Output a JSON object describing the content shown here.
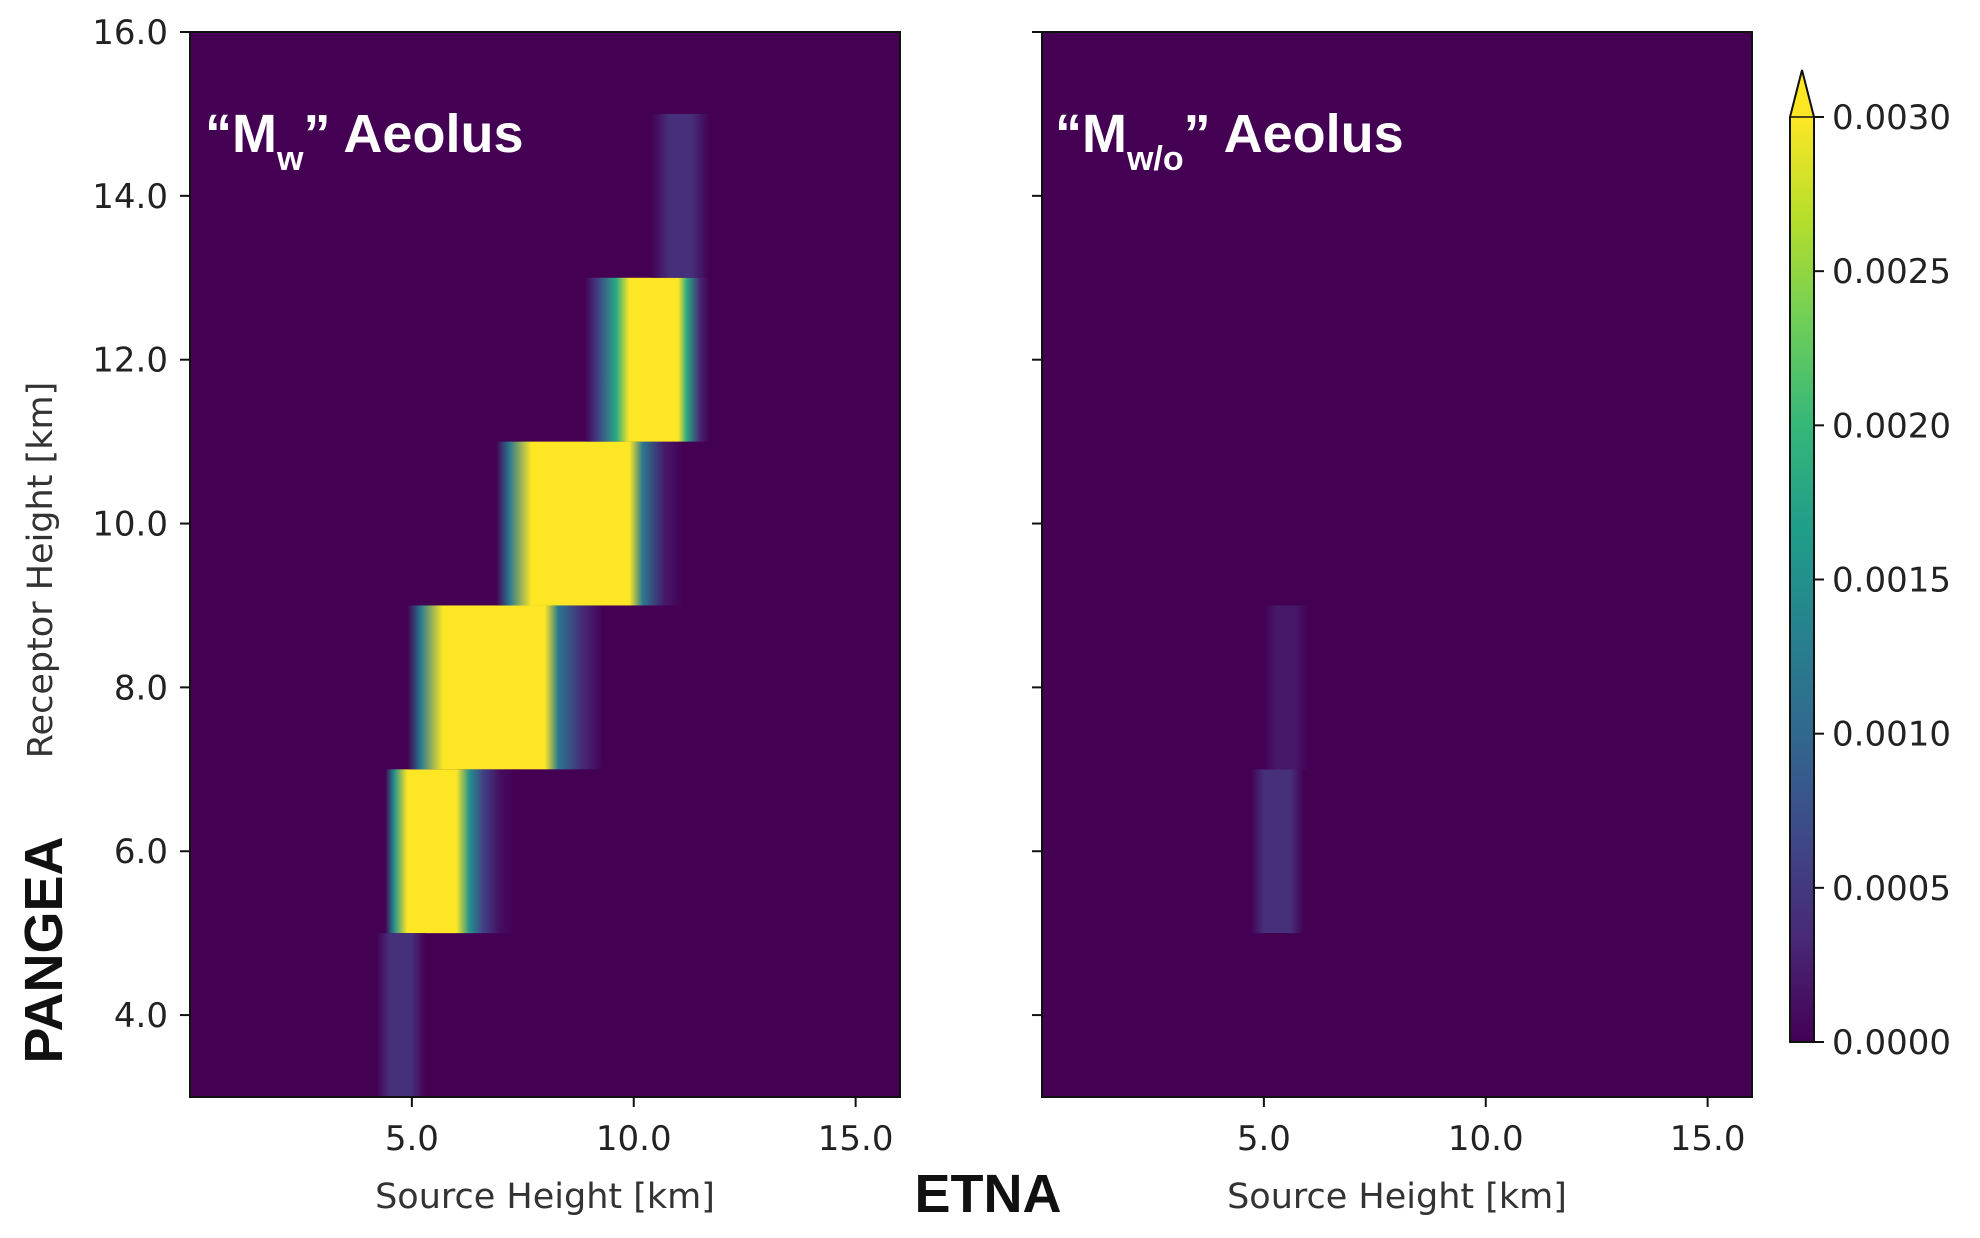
{
  "chart_data": [
    {
      "type": "heatmap",
      "title_prefix": "“M",
      "title_subscript": "w",
      "title_suffix": "” Aeolus",
      "xlabel": "Source Height [km]",
      "ylabel": "Receptor Height [km]",
      "xlim": [
        0,
        16
      ],
      "ylim": [
        3,
        16
      ],
      "xticks": [
        "5.0",
        "10.0",
        "15.0"
      ],
      "yticks": [
        "4.0",
        "6.0",
        "8.0",
        "10.0",
        "12.0",
        "14.0",
        "16.0"
      ],
      "cells": [
        {
          "y": [
            5,
            7
          ],
          "profile": [
            [
              4.4,
              0
            ],
            [
              4.6,
              0.0015
            ],
            [
              4.9,
              0.003
            ],
            [
              6.0,
              0.003
            ],
            [
              6.3,
              0.0015
            ],
            [
              6.6,
              0.0006
            ],
            [
              7.0,
              0.0001
            ],
            [
              7.3,
              0
            ]
          ]
        },
        {
          "y": [
            7,
            9
          ],
          "profile": [
            [
              4.9,
              0
            ],
            [
              5.2,
              0.0012
            ],
            [
              5.7,
              0.003
            ],
            [
              8.0,
              0.003
            ],
            [
              8.3,
              0.0012
            ],
            [
              8.8,
              0.0004
            ],
            [
              9.3,
              0
            ]
          ]
        },
        {
          "y": [
            9,
            11
          ],
          "profile": [
            [
              6.9,
              0
            ],
            [
              7.2,
              0.0012
            ],
            [
              7.7,
              0.003
            ],
            [
              9.9,
              0.003
            ],
            [
              10.2,
              0.0012
            ],
            [
              10.7,
              0.0002
            ],
            [
              11.1,
              0
            ]
          ]
        },
        {
          "y": [
            11,
            13
          ],
          "profile": [
            [
              8.9,
              0
            ],
            [
              9.2,
              0.0006
            ],
            [
              9.6,
              0.0018
            ],
            [
              9.9,
              0.003
            ],
            [
              11.0,
              0.003
            ],
            [
              11.2,
              0.0018
            ],
            [
              11.5,
              0.0003
            ],
            [
              11.7,
              0
            ]
          ]
        },
        {
          "y": [
            13,
            15
          ],
          "profile": [
            [
              10.4,
              0
            ],
            [
              10.8,
              0.0004
            ],
            [
              11.3,
              0.0004
            ],
            [
              11.7,
              0
            ]
          ]
        },
        {
          "y": [
            3,
            5
          ],
          "profile": [
            [
              4.2,
              0
            ],
            [
              4.5,
              0.0004
            ],
            [
              5.0,
              0.0004
            ],
            [
              5.3,
              0
            ]
          ]
        }
      ]
    },
    {
      "type": "heatmap",
      "title_prefix": "“M",
      "title_subscript": "w/o",
      "title_suffix": "” Aeolus",
      "xlabel": "Source Height [km]",
      "ylabel": "",
      "xlim": [
        0,
        16
      ],
      "ylim": [
        3,
        16
      ],
      "xticks": [
        "5.0",
        "10.0",
        "15.0"
      ],
      "yticks": [
        "4.0",
        "6.0",
        "8.0",
        "10.0",
        "12.0",
        "14.0",
        "16.0"
      ],
      "cells": [
        {
          "y": [
            5,
            7
          ],
          "profile": [
            [
              4.7,
              0
            ],
            [
              5.0,
              0.0004
            ],
            [
              5.6,
              0.0004
            ],
            [
              5.9,
              0
            ]
          ]
        },
        {
          "y": [
            7,
            9
          ],
          "profile": [
            [
              5.0,
              0
            ],
            [
              5.3,
              0.0002
            ],
            [
              5.7,
              0.0002
            ],
            [
              6.0,
              0
            ]
          ]
        }
      ]
    }
  ],
  "colorbar": {
    "range": [
      0,
      0.003
    ],
    "ticks": [
      "0.0000",
      "0.0005",
      "0.0010",
      "0.0015",
      "0.0020",
      "0.0025",
      "0.0030"
    ],
    "extend": "max",
    "colormap": "viridis",
    "colors": [
      "#440154",
      "#482878",
      "#3e4989",
      "#31688e",
      "#26828e",
      "#1f9e89",
      "#35b779",
      "#6ece58",
      "#b5de2b",
      "#fde725"
    ]
  },
  "labels": {
    "x_group": "ETNA",
    "y_group": "PANGEA"
  }
}
